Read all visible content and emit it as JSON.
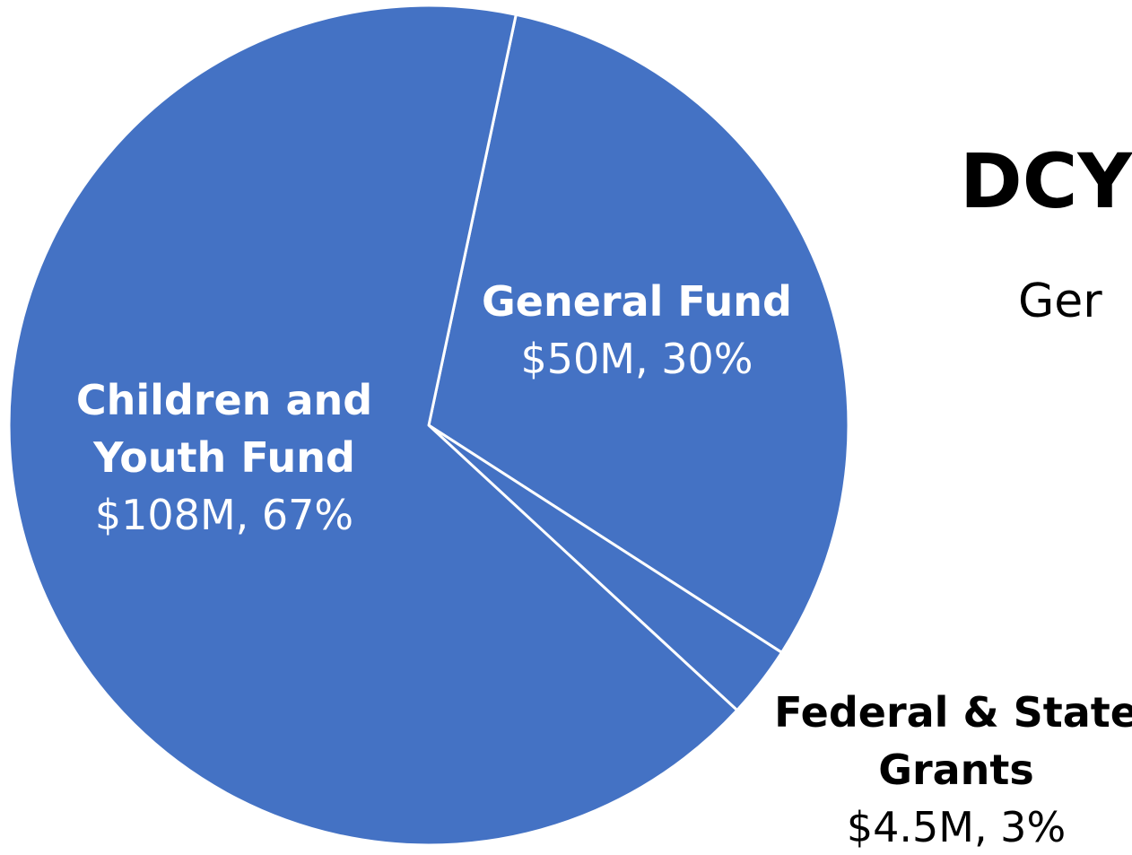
{
  "chart_data": {
    "type": "pie",
    "title": "DCY",
    "subtitle": "Ger",
    "slices": [
      {
        "label_lines": [
          "General Fund"
        ],
        "value_text": "$50M, 30%",
        "value": 50,
        "percent": 30
      },
      {
        "label_lines": [
          "Federal & State",
          "Grants"
        ],
        "value_text": "$4.5M, 3%",
        "value": 4.5,
        "percent": 3
      },
      {
        "label_lines": [
          "Children and",
          "Youth Fund"
        ],
        "value_text": "$108M, 67%",
        "value": 108,
        "percent": 67
      }
    ],
    "colors": {
      "fill": "#4472c4",
      "border": "#ffffff",
      "inside_label": "#ffffff",
      "outside_label": "#000000"
    }
  }
}
